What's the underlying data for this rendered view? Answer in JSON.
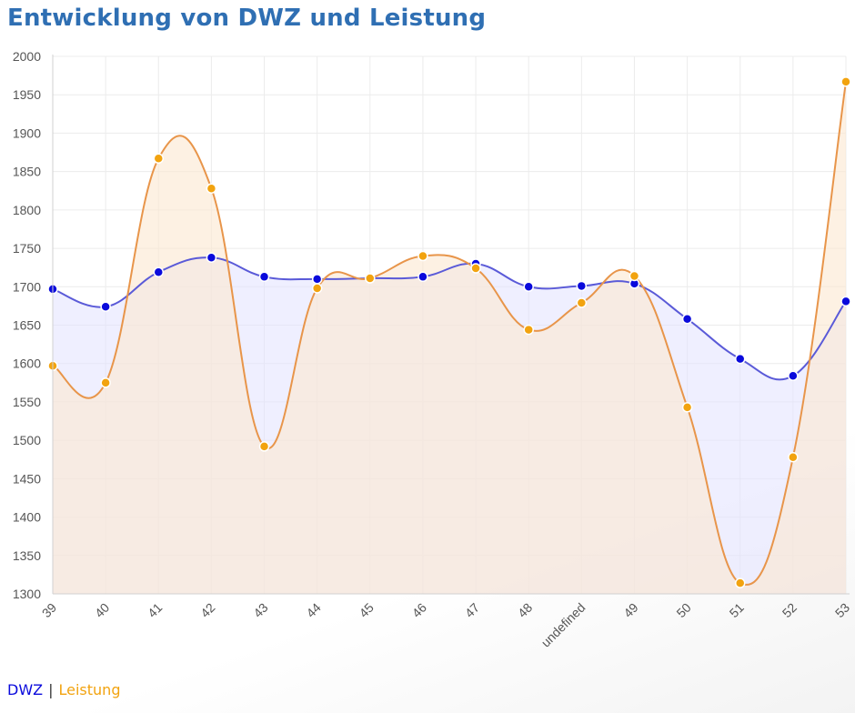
{
  "title": "Entwicklung von DWZ und Leistung",
  "colors": {
    "dwz": "#0a0adc",
    "dwz_line": "#5a5ad8",
    "dwz_fill": "rgba(225,225,255,0.55)",
    "leistung": "#f2a30f",
    "leistung_line": "#e8954a",
    "leistung_fill": "rgba(252,232,208,0.6)"
  },
  "legend": {
    "dwz": "DWZ",
    "separator": "|",
    "leistung": "Leistung"
  },
  "chart_data": {
    "type": "area",
    "categories": [
      "39",
      "40",
      "41",
      "42",
      "43",
      "44",
      "45",
      "46",
      "47",
      "48",
      "undefined",
      "49",
      "50",
      "51",
      "52",
      "53"
    ],
    "ylim": [
      1300,
      2000
    ],
    "yticks": [
      1300,
      1350,
      1400,
      1450,
      1500,
      1550,
      1600,
      1650,
      1700,
      1750,
      1800,
      1850,
      1900,
      1950,
      2000
    ],
    "grid": true,
    "legend_position": "bottom-left",
    "series": [
      {
        "name": "DWZ",
        "values": [
          1697,
          1674,
          1719,
          1738,
          1713,
          1710,
          1711,
          1713,
          1730,
          1700,
          1701,
          1704,
          1658,
          1606,
          1584,
          1681
        ]
      },
      {
        "name": "Leistung",
        "values": [
          1597,
          1575,
          1867,
          1828,
          1492,
          1698,
          1711,
          1740,
          1724,
          1644,
          1679,
          1714,
          1543,
          1314,
          1478,
          1967
        ]
      }
    ]
  }
}
